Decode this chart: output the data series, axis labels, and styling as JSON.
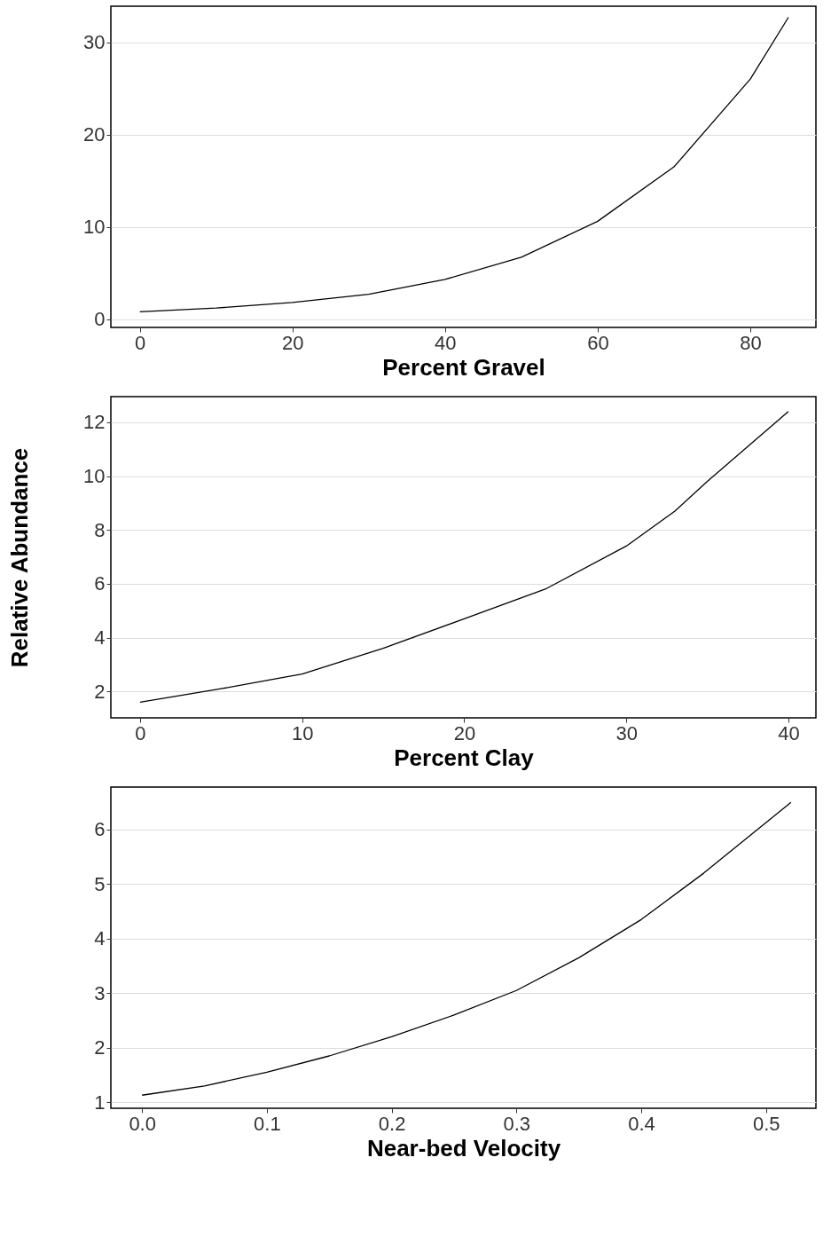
{
  "chart_data": [
    {
      "type": "line",
      "xlabel": "Percent Gravel",
      "x": [
        0,
        10,
        20,
        30,
        40,
        50,
        60,
        70,
        80,
        85
      ],
      "series": [
        {
          "color": "#000000",
          "values": [
            0.8,
            1.2,
            1.8,
            2.7,
            4.3,
            6.7,
            10.6,
            16.5,
            26,
            32.7
          ]
        }
      ],
      "xlim": [
        -3.8,
        88.6
      ],
      "xticks": [
        0,
        20,
        40,
        60,
        80
      ],
      "ylim": [
        -0.9,
        33.9
      ],
      "yticks": [
        0,
        10,
        20,
        30
      ],
      "grid": "y"
    },
    {
      "type": "line",
      "xlabel": "Percent Clay",
      "ylabel": "Relative Abundance",
      "x": [
        0,
        5,
        10,
        15,
        20,
        25,
        30,
        33,
        35,
        40
      ],
      "series": [
        {
          "color": "#000000",
          "values": [
            1.6,
            2.1,
            2.65,
            3.6,
            4.7,
            5.8,
            7.4,
            8.7,
            9.8,
            12.4
          ]
        }
      ],
      "xlim": [
        -1.8,
        41.7
      ],
      "xticks": [
        0,
        10,
        20,
        30,
        40
      ],
      "ylim": [
        1.02,
        12.95
      ],
      "yticks": [
        2,
        4,
        6,
        8,
        10,
        12
      ],
      "grid": "y"
    },
    {
      "type": "line",
      "xlabel": "Near-bed Velocity",
      "x": [
        0,
        0.05,
        0.1,
        0.15,
        0.2,
        0.25,
        0.3,
        0.35,
        0.4,
        0.45,
        0.52
      ],
      "series": [
        {
          "color": "#000000",
          "values": [
            1.13,
            1.3,
            1.55,
            1.85,
            2.2,
            2.6,
            3.05,
            3.65,
            4.35,
            5.2,
            6.5
          ]
        }
      ],
      "xlim": [
        -0.025,
        0.54
      ],
      "xticks": [
        {
          "value": 0,
          "label": "0.0"
        },
        0.1,
        0.2,
        0.3,
        0.4,
        0.5
      ],
      "ylim": [
        0.89,
        6.78
      ],
      "yticks": [
        1,
        2,
        3,
        4,
        5,
        6
      ],
      "grid": "y"
    }
  ]
}
